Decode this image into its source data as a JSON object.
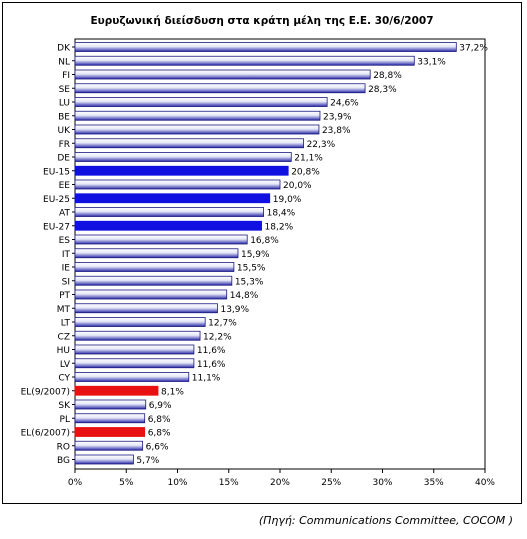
{
  "chart_data": {
    "type": "bar",
    "orientation": "horizontal",
    "title": "Ευρυζωνική διείσδυση στα κράτη μέλη της Ε.Ε. 30/6/2007",
    "categories": [
      "DK",
      "NL",
      "FI",
      "SE",
      "LU",
      "BE",
      "UK",
      "FR",
      "DE",
      "EU-15",
      "EE",
      "EU-25",
      "AT",
      "EU-27",
      "ES",
      "IT",
      "IE",
      "SI",
      "PT",
      "MT",
      "LT",
      "CZ",
      "HU",
      "LV",
      "CY",
      "EL(9/2007)",
      "SK",
      "PL",
      "EL(6/2007)",
      "RO",
      "BG"
    ],
    "values": [
      37.2,
      33.1,
      28.8,
      28.3,
      24.6,
      23.9,
      23.8,
      22.3,
      21.1,
      20.8,
      20.0,
      19.0,
      18.4,
      18.2,
      16.8,
      15.9,
      15.5,
      15.3,
      14.8,
      13.9,
      12.7,
      12.2,
      11.6,
      11.6,
      11.1,
      8.1,
      6.9,
      6.8,
      6.8,
      6.6,
      5.7
    ],
    "value_labels": [
      "37,2%",
      "33,1%",
      "28,8%",
      "28,3%",
      "24,6%",
      "23,9%",
      "23,8%",
      "22,3%",
      "21,1%",
      "20,8%",
      "20,0%",
      "19,0%",
      "18,4%",
      "18,2%",
      "16,8%",
      "15,9%",
      "15,5%",
      "15,3%",
      "14,8%",
      "13,9%",
      "12,7%",
      "12,2%",
      "11,6%",
      "11,6%",
      "11,1%",
      "8,1%",
      "6,9%",
      "6,8%",
      "6,8%",
      "6,6%",
      "5,7%"
    ],
    "highlight": {
      "EU-15": "#1010e0",
      "EU-25": "#1010e0",
      "EU-27": "#1010e0",
      "EL(9/2007)": "#e81010",
      "EL(6/2007)": "#e81010"
    },
    "default_bar_color": "gradient-white-blue",
    "xlim": [
      0,
      40
    ],
    "x_ticks": [
      0,
      5,
      10,
      15,
      20,
      25,
      30,
      35,
      40
    ],
    "x_tick_labels": [
      "0%",
      "5%",
      "10%",
      "15%",
      "20%",
      "25%",
      "30%",
      "35%",
      "40%"
    ],
    "grid": false,
    "xlabel": "",
    "ylabel": ""
  },
  "source_note": "(Πηγή: Communications Committee, COCOM )"
}
